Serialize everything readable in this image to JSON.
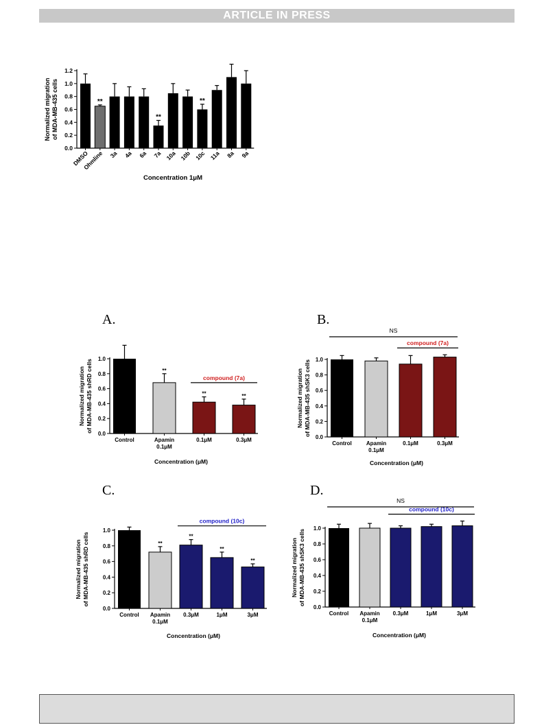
{
  "banner": "ARTICLE IN PRESS",
  "colors": {
    "black": "#000000",
    "gray": "#6e6e6e",
    "light_gray": "#cccccc",
    "dark_red": "#7a1515",
    "navy": "#1a1a6e",
    "red_text": "#d02020",
    "blue_text": "#2020c8"
  },
  "chart_data": [
    {
      "id": "top",
      "type": "bar",
      "panel_letter": "",
      "categories": [
        "DMSO",
        "Ohmline",
        "3a",
        "4a",
        "6a",
        "7a",
        "10a",
        "10b",
        "10c",
        "11a",
        "8a",
        "9a"
      ],
      "values": [
        1.0,
        0.65,
        0.8,
        0.8,
        0.8,
        0.35,
        0.85,
        0.8,
        0.6,
        0.9,
        1.1,
        1.0
      ],
      "errors": [
        0.15,
        0.02,
        0.2,
        0.15,
        0.12,
        0.08,
        0.15,
        0.1,
        0.08,
        0.07,
        0.2,
        0.2
      ],
      "marks": [
        "",
        "**",
        "",
        "",
        "",
        "**",
        "",
        "",
        "**",
        "",
        "",
        ""
      ],
      "bar_colors": [
        "black",
        "gray",
        "black",
        "black",
        "black",
        "black",
        "black",
        "black",
        "black",
        "black",
        "black",
        "black"
      ],
      "ylabel": [
        "Normalized migration",
        "of MDA-MB-435 cells"
      ],
      "xlabel": "Concentration 1μM",
      "ylim": [
        0,
        1.2
      ],
      "yticks": [
        "0.0",
        "0.2",
        "0.4",
        "0.6",
        "0.8",
        "1.0",
        "1.2"
      ],
      "rotated_labels": true,
      "bracket": null,
      "ns": null
    },
    {
      "id": "A",
      "type": "bar",
      "panel_letter": "A.",
      "categories": [
        "Control",
        "Apamin\n0.1μM",
        "0.1μM",
        "0.3μM"
      ],
      "values": [
        1.0,
        0.68,
        0.42,
        0.38
      ],
      "errors": [
        0.18,
        0.12,
        0.07,
        0.08
      ],
      "marks": [
        "",
        "**",
        "**",
        "**"
      ],
      "bar_colors": [
        "black",
        "light_gray",
        "dark_red",
        "dark_red"
      ],
      "ylabel": [
        "Normalized migration",
        "of MDA-MB-435 shRD cells"
      ],
      "xlabel": "Concentration (μM)",
      "ylim": [
        0,
        1.0
      ],
      "yticks": [
        "0.0",
        "0.2",
        "0.4",
        "0.6",
        "0.8",
        "1.0"
      ],
      "rotated_labels": false,
      "bracket": {
        "label": "compound (7a)",
        "from": 2,
        "to": 3,
        "color": "red_text"
      },
      "ns": null
    },
    {
      "id": "B",
      "type": "bar",
      "panel_letter": "B.",
      "categories": [
        "Control",
        "Apamin\n0.1μM",
        "0.1μM",
        "0.3μM"
      ],
      "values": [
        1.0,
        0.98,
        0.94,
        1.03
      ],
      "errors": [
        0.05,
        0.04,
        0.11,
        0.03
      ],
      "marks": [
        "",
        "",
        "",
        ""
      ],
      "bar_colors": [
        "black",
        "light_gray",
        "dark_red",
        "dark_red"
      ],
      "ylabel": [
        "Normalized migration",
        "of MDA-MB-435 shSK3 cells"
      ],
      "xlabel": "Concentration (μM)",
      "ylim": [
        0,
        1.0
      ],
      "yticks": [
        "0.0",
        "0.2",
        "0.4",
        "0.6",
        "0.8",
        "1.0"
      ],
      "rotated_labels": false,
      "bracket": {
        "label": "compound (7a)",
        "from": 2,
        "to": 3,
        "color": "red_text"
      },
      "ns": "NS"
    },
    {
      "id": "C",
      "type": "bar",
      "panel_letter": "C.",
      "categories": [
        "Control",
        "Apamin\n0.1μM",
        "0.3μM",
        "1μM",
        "3μM"
      ],
      "values": [
        1.0,
        0.72,
        0.81,
        0.65,
        0.53
      ],
      "errors": [
        0.04,
        0.07,
        0.07,
        0.07,
        0.04
      ],
      "marks": [
        "",
        "**",
        "**",
        "**",
        "**"
      ],
      "bar_colors": [
        "black",
        "light_gray",
        "navy",
        "navy",
        "navy"
      ],
      "ylabel": [
        "Normalized migration",
        "of MDA-MB-435 shRD cells"
      ],
      "xlabel": "Concentration (μM)",
      "ylim": [
        0,
        1.0
      ],
      "yticks": [
        "0.0",
        "0.2",
        "0.4",
        "0.6",
        "0.8",
        "1.0"
      ],
      "rotated_labels": false,
      "bracket": {
        "label": "compound (10c)",
        "from": 2,
        "to": 4,
        "color": "blue_text"
      },
      "ns": null
    },
    {
      "id": "D",
      "type": "bar",
      "panel_letter": "D.",
      "categories": [
        "Control",
        "Apamin\n0.1μM",
        "0.3μM",
        "1μM",
        "3μM"
      ],
      "values": [
        1.0,
        1.0,
        1.0,
        1.02,
        1.03
      ],
      "errors": [
        0.05,
        0.06,
        0.03,
        0.03,
        0.06
      ],
      "marks": [
        "",
        "",
        "",
        "",
        ""
      ],
      "bar_colors": [
        "black",
        "light_gray",
        "navy",
        "navy",
        "navy"
      ],
      "ylabel": [
        "Normalized migration",
        "of MDA-MB-435 shSK3 cells"
      ],
      "xlabel": "Concentration (μM)",
      "ylim": [
        0,
        1.0
      ],
      "yticks": [
        "0.0",
        "0.2",
        "0.4",
        "0.6",
        "0.8",
        "1.0"
      ],
      "rotated_labels": false,
      "bracket": {
        "label": "compound (10c)",
        "from": 2,
        "to": 4,
        "color": "blue_text"
      },
      "ns": "NS"
    }
  ]
}
